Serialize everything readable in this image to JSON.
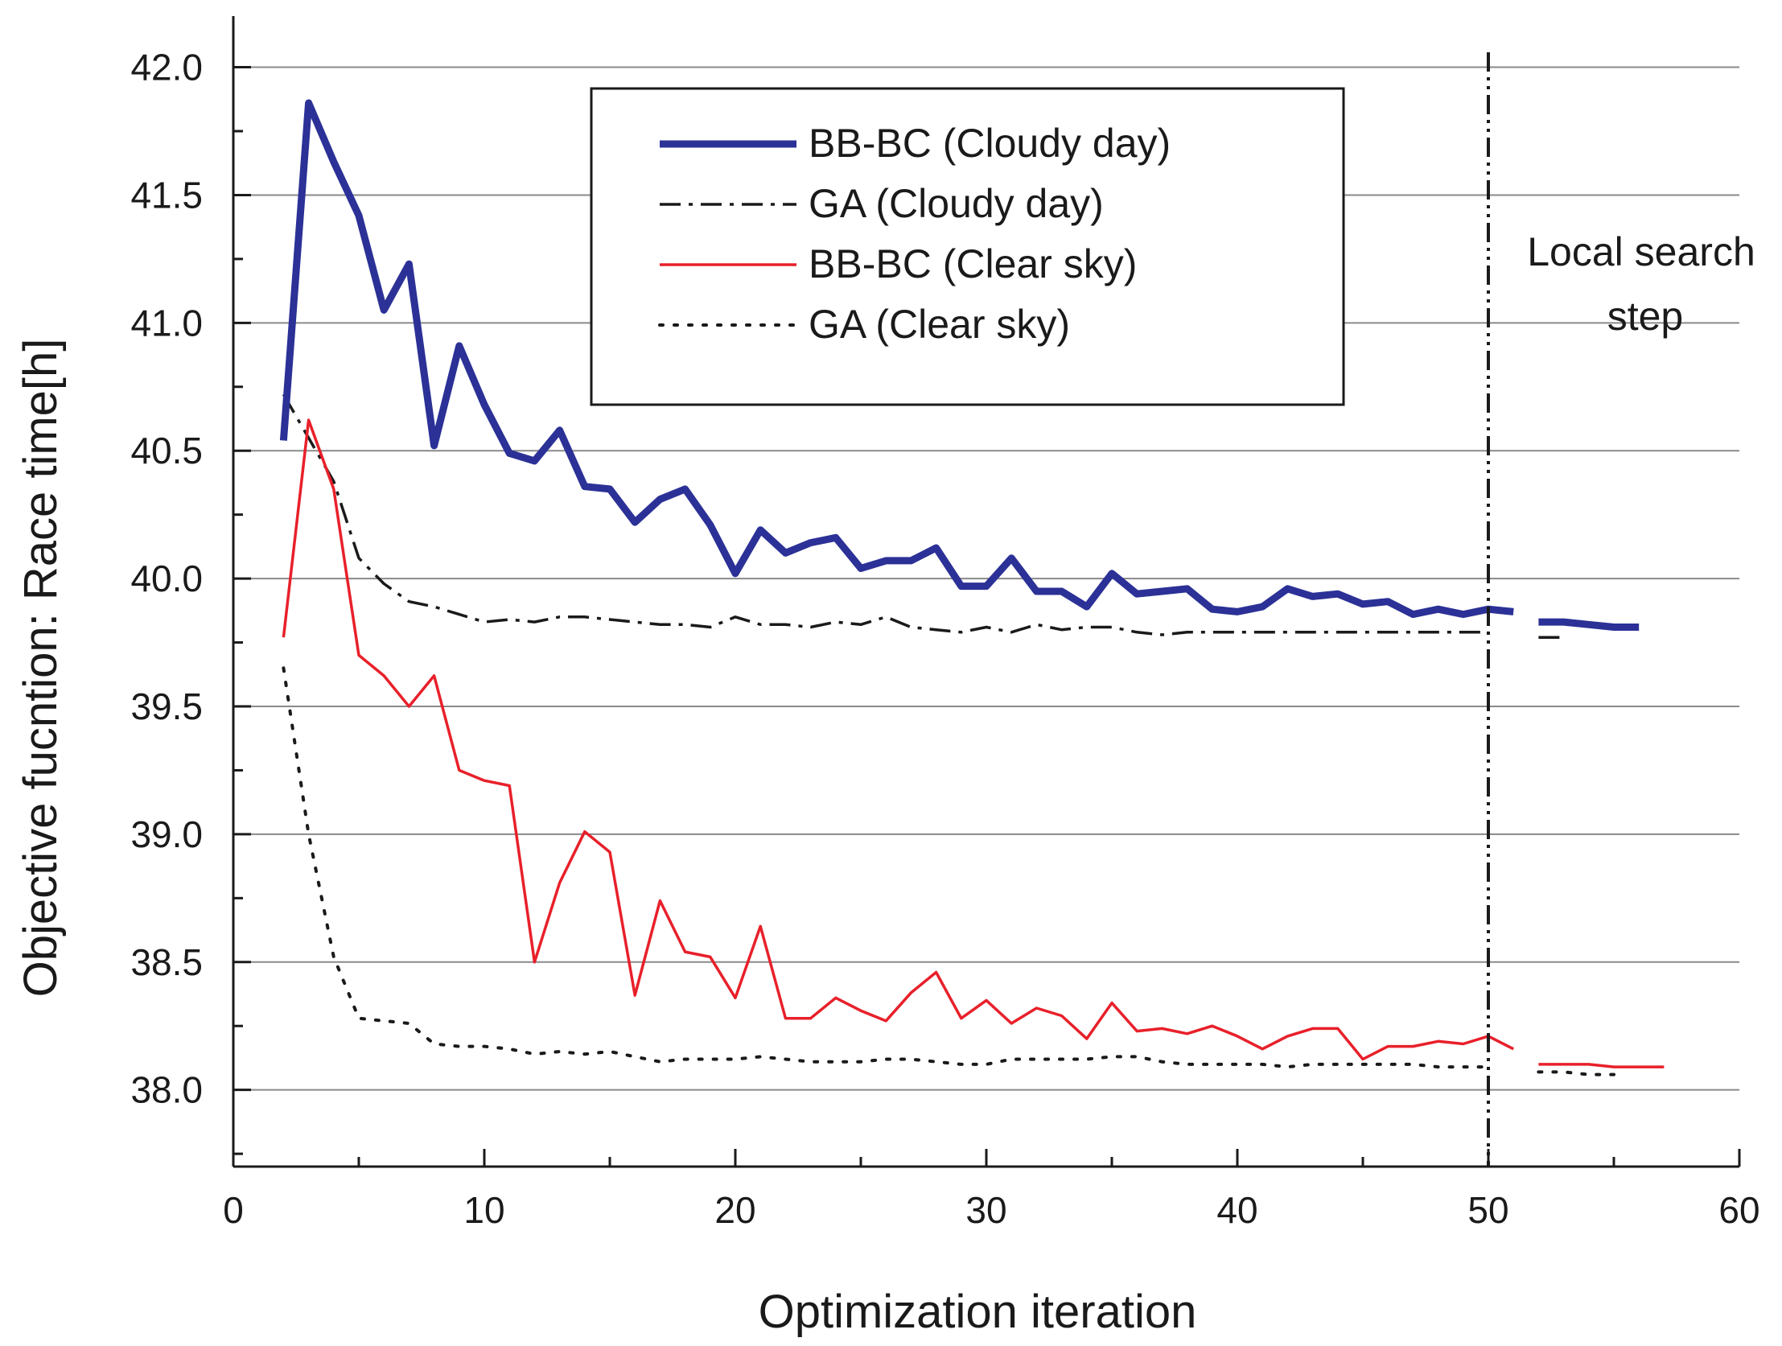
{
  "chart_data": {
    "type": "line",
    "title": "",
    "xlabel": "Optimization iteration",
    "ylabel": "Objective fucntion: Race time[h]",
    "xlim": [
      0,
      60
    ],
    "ylim": [
      37.7,
      42.2
    ],
    "x_ticks": [
      0,
      10,
      20,
      30,
      40,
      50,
      60
    ],
    "x_tick_labels": [
      "0",
      "10",
      "20",
      "30",
      "40",
      "50",
      "60"
    ],
    "y_ticks": [
      38.0,
      38.5,
      39.0,
      39.5,
      40.0,
      40.5,
      41.0,
      41.5,
      42.0
    ],
    "y_tick_labels": [
      "38.0",
      "38.5",
      "39.0",
      "39.5",
      "40.0",
      "40.5",
      "41.0",
      "41.5",
      "42.0"
    ],
    "grid": "horizontal",
    "legend_position": "top-center",
    "annotation": {
      "x": 50,
      "lines": [
        "Local search",
        "step"
      ]
    },
    "series": [
      {
        "name": "BB-BC (Cloudy day)",
        "color": "#2b3196",
        "style": "solid-thick",
        "segments": [
          {
            "x": [
              2,
              3,
              4,
              5,
              6,
              7,
              8,
              9,
              10,
              11,
              12,
              13,
              14,
              15,
              16,
              17,
              18,
              19,
              20,
              21,
              22,
              23,
              24,
              25,
              26,
              27,
              28,
              29,
              30,
              31,
              32,
              33,
              34,
              35,
              36,
              37,
              38,
              39,
              40,
              41,
              42,
              43,
              44,
              45,
              46,
              47,
              48,
              49,
              50,
              51
            ],
            "y": [
              40.54,
              41.86,
              41.63,
              41.42,
              41.05,
              41.23,
              40.52,
              40.91,
              40.68,
              40.49,
              40.46,
              40.58,
              40.36,
              40.35,
              40.22,
              40.31,
              40.35,
              40.21,
              40.02,
              40.19,
              40.1,
              40.14,
              40.16,
              40.04,
              40.07,
              40.07,
              40.12,
              39.97,
              39.97,
              40.08,
              39.95,
              39.95,
              39.89,
              40.02,
              39.94,
              39.95,
              39.96,
              39.88,
              39.87,
              39.89,
              39.96,
              39.93,
              39.94,
              39.9,
              39.91,
              39.86,
              39.88,
              39.86,
              39.88,
              39.87
            ]
          },
          {
            "x": [
              52,
              53,
              54,
              55,
              56
            ],
            "y": [
              39.83,
              39.83,
              39.82,
              39.81,
              39.81
            ]
          }
        ]
      },
      {
        "name": "GA (Cloudy day)",
        "color": "#1a1a1a",
        "style": "dash-dot",
        "segments": [
          {
            "x": [
              2,
              3,
              4,
              5,
              6,
              7,
              8,
              9,
              10,
              11,
              12,
              13,
              14,
              15,
              16,
              17,
              18,
              19,
              20,
              21,
              22,
              23,
              24,
              25,
              26,
              27,
              28,
              29,
              30,
              31,
              32,
              33,
              34,
              35,
              36,
              37,
              38,
              39,
              40,
              41,
              42,
              43,
              44,
              45,
              46,
              47,
              48,
              49,
              50
            ],
            "y": [
              40.72,
              40.55,
              40.38,
              40.08,
              39.98,
              39.91,
              39.89,
              39.86,
              39.83,
              39.84,
              39.83,
              39.85,
              39.85,
              39.84,
              39.83,
              39.82,
              39.82,
              39.81,
              39.85,
              39.82,
              39.82,
              39.81,
              39.83,
              39.82,
              39.85,
              39.81,
              39.8,
              39.79,
              39.81,
              39.79,
              39.82,
              39.8,
              39.81,
              39.81,
              39.79,
              39.78,
              39.79,
              39.79,
              39.79,
              39.79,
              39.79,
              39.79,
              39.79,
              39.79,
              39.79,
              39.79,
              39.79,
              39.79,
              39.79
            ]
          },
          {
            "x": [
              52,
              53
            ],
            "y": [
              39.77,
              39.77
            ]
          }
        ]
      },
      {
        "name": "BB-BC (Clear sky)",
        "color": "#e8202a",
        "style": "solid",
        "segments": [
          {
            "x": [
              2,
              3,
              4,
              5,
              6,
              7,
              8,
              9,
              10,
              11,
              12,
              13,
              14,
              15,
              16,
              17,
              18,
              19,
              20,
              21,
              22,
              23,
              24,
              25,
              26,
              27,
              28,
              29,
              30,
              31,
              32,
              33,
              34,
              35,
              36,
              37,
              38,
              39,
              40,
              41,
              42,
              43,
              44,
              45,
              46,
              47,
              48,
              49,
              50,
              51
            ],
            "y": [
              39.77,
              40.62,
              40.35,
              39.7,
              39.62,
              39.5,
              39.62,
              39.25,
              39.21,
              39.19,
              38.5,
              38.81,
              39.01,
              38.93,
              38.37,
              38.74,
              38.54,
              38.52,
              38.36,
              38.64,
              38.28,
              38.28,
              38.36,
              38.31,
              38.27,
              38.38,
              38.46,
              38.28,
              38.35,
              38.26,
              38.32,
              38.29,
              38.2,
              38.34,
              38.23,
              38.24,
              38.22,
              38.25,
              38.21,
              38.16,
              38.21,
              38.24,
              38.24,
              38.12,
              38.17,
              38.17,
              38.19,
              38.18,
              38.21,
              38.16
            ]
          },
          {
            "x": [
              52,
              53,
              54,
              55,
              56,
              57
            ],
            "y": [
              38.1,
              38.1,
              38.1,
              38.09,
              38.09,
              38.09
            ]
          }
        ]
      },
      {
        "name": "GA (Clear sky)",
        "color": "#1a1a1a",
        "style": "dotted",
        "segments": [
          {
            "x": [
              2,
              3,
              4,
              5,
              6,
              7,
              8,
              9,
              10,
              11,
              12,
              13,
              14,
              15,
              16,
              17,
              18,
              19,
              20,
              21,
              22,
              23,
              24,
              25,
              26,
              27,
              28,
              29,
              30,
              31,
              32,
              33,
              34,
              35,
              36,
              37,
              38,
              39,
              40,
              41,
              42,
              43,
              44,
              45,
              46,
              47,
              48,
              49,
              50
            ],
            "y": [
              39.65,
              39.0,
              38.52,
              38.28,
              38.27,
              38.26,
              38.18,
              38.17,
              38.17,
              38.16,
              38.14,
              38.15,
              38.14,
              38.15,
              38.13,
              38.11,
              38.12,
              38.12,
              38.12,
              38.13,
              38.12,
              38.11,
              38.11,
              38.11,
              38.12,
              38.12,
              38.11,
              38.1,
              38.1,
              38.12,
              38.12,
              38.12,
              38.12,
              38.13,
              38.13,
              38.11,
              38.1,
              38.1,
              38.1,
              38.1,
              38.09,
              38.1,
              38.1,
              38.1,
              38.1,
              38.1,
              38.09,
              38.09,
              38.09
            ]
          },
          {
            "x": [
              52,
              53,
              54,
              55
            ],
            "y": [
              38.07,
              38.07,
              38.06,
              38.06
            ]
          }
        ]
      }
    ]
  }
}
